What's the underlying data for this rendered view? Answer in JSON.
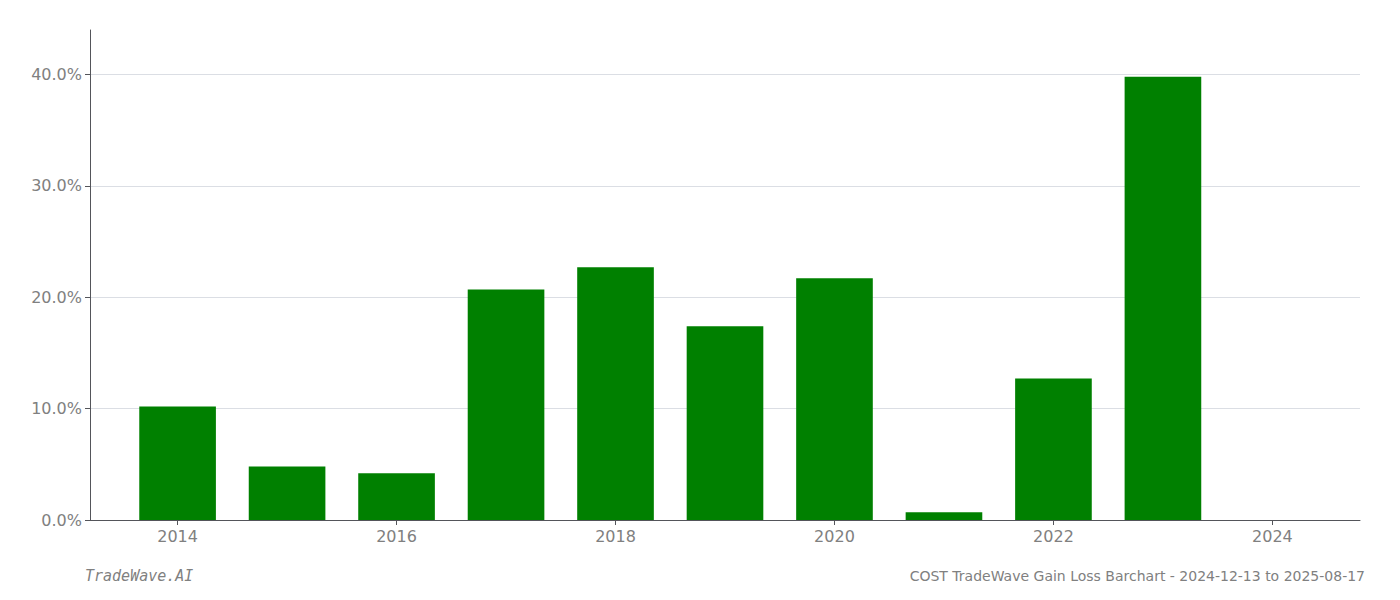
{
  "chart_data": {
    "type": "bar",
    "title": "COST TradeWave Gain Loss Barchart - 2024-12-13 to 2025-08-17",
    "annotations": [
      "TradeWave.AI"
    ],
    "x": [
      2014,
      2015,
      2016,
      2017,
      2018,
      2019,
      2020,
      2021,
      2022,
      2023
    ],
    "values": [
      0.102,
      0.048,
      0.042,
      0.207,
      0.227,
      0.174,
      0.217,
      0.007,
      0.127,
      0.398
    ],
    "color": "#008000",
    "xlim": [
      2013.2,
      2024.8
    ],
    "xticks": [
      2014,
      2016,
      2018,
      2020,
      2022,
      2024
    ],
    "ylim": [
      0,
      0.44
    ],
    "yticks": [
      {
        "value": 0.0,
        "label": "0.0%"
      },
      {
        "value": 0.1,
        "label": "10.0%"
      },
      {
        "value": 0.2,
        "label": "20.0%"
      },
      {
        "value": 0.3,
        "label": "30.0%"
      },
      {
        "value": 0.4,
        "label": "40.0%"
      }
    ],
    "grid": true
  }
}
